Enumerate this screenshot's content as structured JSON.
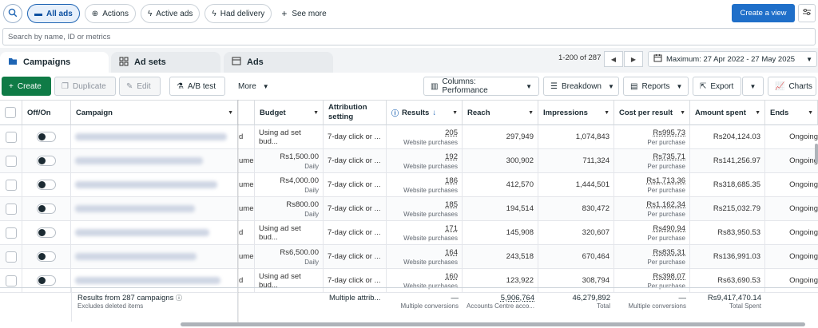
{
  "topbar": {
    "search_icon": "search-icon",
    "chips": [
      {
        "label": "All ads",
        "icon": "folder-icon",
        "active": true
      },
      {
        "label": "Actions",
        "icon": "action-icon",
        "active": false
      },
      {
        "label": "Active ads",
        "icon": "bolt-icon",
        "active": false
      },
      {
        "label": "Had delivery",
        "icon": "bolt-icon",
        "active": false
      }
    ],
    "see_more": "See more",
    "create_view": "Create a view"
  },
  "search": {
    "placeholder": "Search by name, ID or metrics"
  },
  "tabs": [
    {
      "label": "Campaigns",
      "icon": "folder-icon"
    },
    {
      "label": "Ad sets",
      "icon": "grid-icon"
    },
    {
      "label": "Ads",
      "icon": "ad-icon"
    }
  ],
  "pager": {
    "range": "1-200 of 287"
  },
  "date_range": "Maximum: 27 Apr 2022 - 27 May 2025",
  "toolbar": {
    "create": "Create",
    "duplicate": "Duplicate",
    "edit": "Edit",
    "ab_test": "A/B test",
    "more": "More",
    "columns": "Columns: Performance",
    "breakdown": "Breakdown",
    "reports": "Reports",
    "export": "Export",
    "charts": "Charts"
  },
  "columns": {
    "off_on": "Off/On",
    "campaign": "Campaign",
    "budget": "Budget",
    "attribution": "Attribution setting",
    "results": "Results",
    "reach": "Reach",
    "impressions": "Impressions",
    "cost_per_result": "Cost per result",
    "amount_spent": "Amount spent",
    "ends": "Ends"
  },
  "rows": [
    {
      "trunc": "d",
      "budget": "Using ad set bud...",
      "budget_sub": "",
      "attribution": "7-day click or ...",
      "results": "205",
      "results_sub": "Website purchases",
      "reach": "297,949",
      "impressions": "1,074,843",
      "cpr": "Rs995.73",
      "cpr_sub": "Per purchase",
      "spent": "Rs204,124.03",
      "ends": "Ongoing"
    },
    {
      "trunc": "ume",
      "budget": "Rs1,500.00",
      "budget_sub": "Daily",
      "attribution": "7-day click or ...",
      "results": "192",
      "results_sub": "Website purchases",
      "reach": "300,902",
      "impressions": "711,324",
      "cpr": "Rs735.71",
      "cpr_sub": "Per purchase",
      "spent": "Rs141,256.97",
      "ends": "Ongoing"
    },
    {
      "trunc": "ume",
      "budget": "Rs4,000.00",
      "budget_sub": "Daily",
      "attribution": "7-day click or ...",
      "results": "186",
      "results_sub": "Website purchases",
      "reach": "412,570",
      "impressions": "1,444,501",
      "cpr": "Rs1,713.36",
      "cpr_sub": "Per purchase",
      "spent": "Rs318,685.35",
      "ends": "Ongoing"
    },
    {
      "trunc": "ume",
      "budget": "Rs800.00",
      "budget_sub": "Daily",
      "attribution": "7-day click or ...",
      "results": "185",
      "results_sub": "Website purchases",
      "reach": "194,514",
      "impressions": "830,472",
      "cpr": "Rs1,162.34",
      "cpr_sub": "Per purchase",
      "spent": "Rs215,032.79",
      "ends": "Ongoing"
    },
    {
      "trunc": "d",
      "budget": "Using ad set bud...",
      "budget_sub": "",
      "attribution": "7-day click or ...",
      "results": "171",
      "results_sub": "Website purchases",
      "reach": "145,908",
      "impressions": "320,607",
      "cpr": "Rs490.94",
      "cpr_sub": "Per purchase",
      "spent": "Rs83,950.53",
      "ends": "Ongoing"
    },
    {
      "trunc": "ume",
      "budget": "Rs6,500.00",
      "budget_sub": "Daily",
      "attribution": "7-day click or ...",
      "results": "164",
      "results_sub": "Website purchases",
      "reach": "243,518",
      "impressions": "670,464",
      "cpr": "Rs835.31",
      "cpr_sub": "Per purchase",
      "spent": "Rs136,991.03",
      "ends": "Ongoing"
    },
    {
      "trunc": "d",
      "budget": "Using ad set bud...",
      "budget_sub": "",
      "attribution": "7-day click or ...",
      "results": "160",
      "results_sub": "Website purchases",
      "reach": "123,922",
      "impressions": "308,794",
      "cpr": "Rs398.07",
      "cpr_sub": "Per purchase",
      "spent": "Rs63,690.53",
      "ends": "Ongoing"
    }
  ],
  "footer": {
    "results_from": "Results from 287 campaigns",
    "excludes": "Excludes deleted items",
    "attribution": "Multiple attrib...",
    "results": "—",
    "results_sub": "Multiple conversions",
    "reach": "5,906,764",
    "reach_sub": "Accounts Centre acco...",
    "impressions": "46,279,892",
    "impressions_sub": "Total",
    "cpr": "—",
    "cpr_sub": "Multiple conversions",
    "spent": "Rs9,417,470.14",
    "spent_sub": "Total Spent"
  }
}
